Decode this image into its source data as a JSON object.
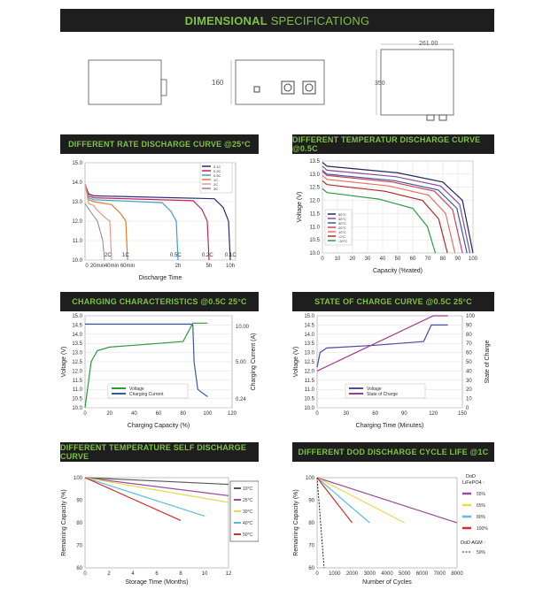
{
  "header": {
    "title_bold": "DIMENSIONAL",
    "title_thin": "SPECIFICATIONG"
  },
  "dimensions": {
    "width_label": "261.00",
    "height_label": "160",
    "depth_label": "350"
  },
  "charts": {
    "rate": {
      "title": "DIFFERENT RATE DISCHARGE CURVE @25°C",
      "ylim": [
        10.0,
        15.0
      ],
      "yticks": [
        "15.0",
        "14.0",
        "13.0",
        "12.0",
        "11.0",
        "10.0"
      ],
      "xticks": [
        "0",
        "20min",
        "40min",
        "60min",
        "2h",
        "5h",
        "10h"
      ],
      "xlabel": "Discharge Time",
      "rate_labels": [
        "2C",
        "1C",
        "0.5C",
        "0.2C",
        "0.1C"
      ],
      "legend": [
        "0.1C",
        "0.2C",
        "0.5C",
        "1C",
        "2C",
        "3C"
      ],
      "colors": [
        "#2a2a7a",
        "#c0285a",
        "#3aa0c8",
        "#e07a30",
        "#e89a8a",
        "#888888"
      ]
    },
    "temp": {
      "title": "DIFFERENT TEMPERATUR DISCHARGE CURVE @0.5C",
      "ylabel": "Voltage (V)",
      "xlabel": "Capacity (%rated)",
      "yticks": [
        "13.5",
        "13.0",
        "12.5",
        "12.0",
        "11.5",
        "11.0",
        "10.5",
        "10.0"
      ],
      "xticks": [
        "0",
        "10",
        "20",
        "30",
        "40",
        "50",
        "60",
        "70",
        "80",
        "90",
        "100"
      ],
      "legend": [
        "60°C",
        "45°C",
        "30°C",
        "25°C",
        "10°C",
        "-0°C",
        "-20°C"
      ],
      "colors": [
        "#1e2a5a",
        "#8a4a9a",
        "#3a5aa0",
        "#d04060",
        "#e87060",
        "#b02a2a",
        "#2a9a4a"
      ]
    },
    "charge": {
      "title": "CHARGING CHARACTERISTICS @0.5C 25°C",
      "ylabel": "Voltage (V)",
      "y2label": "Charging Current (A)",
      "xlabel": "Charging Capacity (%)",
      "yticks": [
        "15.0",
        "14.5",
        "14.0",
        "13.5",
        "13.0",
        "12.5",
        "12.0",
        "11.5",
        "11.0",
        "10.5",
        "10.0"
      ],
      "y2ticks": [
        "10.00",
        "5.00",
        "0.24"
      ],
      "xticks": [
        "0",
        "20",
        "40",
        "60",
        "80",
        "100",
        "120"
      ],
      "legend": [
        "Voltage",
        "Charging Current"
      ],
      "colors": [
        "#2a9a3a",
        "#3a5aa0"
      ]
    },
    "soc": {
      "title": "STATE OF CHARGE CURVE @0.5C 25°C",
      "ylabel": "Voltage (V)",
      "y2label": "State of Charge",
      "xlabel": "Charging Time (Minutes)",
      "yticks": [
        "15.0",
        "14.5",
        "14.0",
        "13.5",
        "13.0",
        "12.5",
        "12.0",
        "11.5",
        "11.0",
        "10.5",
        "10.0"
      ],
      "y2ticks": [
        "100",
        "90",
        "80",
        "70",
        "60",
        "50",
        "40",
        "30",
        "20",
        "10",
        "0"
      ],
      "xticks": [
        "0",
        "30",
        "60",
        "90",
        "120",
        "150"
      ],
      "legend": [
        "Voltage",
        "State of Charge"
      ],
      "colors": [
        "#4a4aa0",
        "#a03a8a"
      ]
    },
    "self": {
      "title": "DIFFERENT TEMPERATURE SELF DISCHARGE CURVE",
      "ylabel": "Remaining Capacity (%)",
      "xlabel": "Storage Time (Months)",
      "yticks": [
        "100",
        "90",
        "80",
        "70",
        "60"
      ],
      "xticks": [
        "0",
        "2",
        "4",
        "6",
        "8",
        "10",
        "12"
      ],
      "legend": [
        "10°C",
        "25°C",
        "30°C",
        "40°C",
        "50°C"
      ],
      "colors": [
        "#555555",
        "#9a4aa0",
        "#e8d84a",
        "#5abde0",
        "#d0302a"
      ]
    },
    "dod": {
      "title": "DIFFERENT DOD DISCHARGE CYCLE LIFE @1C",
      "ylabel": "Remaining Capacity (%)",
      "xlabel": "Number of Cycles",
      "yticks": [
        "100",
        "90",
        "80",
        "70",
        "60"
      ],
      "xticks": [
        "0",
        "1000",
        "2000",
        "3000",
        "4000",
        "5000",
        "6000",
        "7000",
        "8000"
      ],
      "legend_title1": "DoD",
      "legend_title2": "LiFePO4 :",
      "legend": [
        "55%",
        "65%",
        "80%",
        "100%"
      ],
      "legend_agm_title": "DoD AGM :",
      "legend_agm": "50%",
      "colors": [
        "#9a4aa0",
        "#e8d84a",
        "#5abde0",
        "#d0302a"
      ]
    }
  },
  "chart_data": [
    {
      "type": "line",
      "title": "DIFFERENT RATE DISCHARGE CURVE @25°C",
      "xlabel": "Discharge Time",
      "ylim": [
        10.0,
        15.0
      ],
      "series": [
        {
          "name": "0.1C",
          "x_end": "10h",
          "values_start": 13.3,
          "values_end": 10.0
        },
        {
          "name": "0.2C",
          "x_end": "5h",
          "values_start": 13.2,
          "values_end": 10.0
        },
        {
          "name": "0.5C",
          "x_end": "2h",
          "values_start": 13.1,
          "values_end": 10.0
        },
        {
          "name": "1C",
          "x_end": "60min",
          "values_start": 13.0,
          "values_end": 10.0
        },
        {
          "name": "2C",
          "x_end": "40min",
          "values_start": 12.8,
          "values_end": 10.0
        }
      ]
    },
    {
      "type": "line",
      "title": "DIFFERENT TEMPERATUR DISCHARGE CURVE @0.5C",
      "xlabel": "Capacity (%rated)",
      "ylabel": "Voltage (V)",
      "ylim": [
        10.0,
        13.5
      ],
      "xlim": [
        0,
        100
      ],
      "series": [
        {
          "name": "60°C",
          "end_x": 100
        },
        {
          "name": "45°C",
          "end_x": 98
        },
        {
          "name": "30°C",
          "end_x": 96
        },
        {
          "name": "25°C",
          "end_x": 93
        },
        {
          "name": "10°C",
          "end_x": 88
        },
        {
          "name": "-0°C",
          "end_x": 83
        },
        {
          "name": "-20°C",
          "end_x": 75
        }
      ]
    },
    {
      "type": "line",
      "title": "CHARGING CHARACTERISTICS @0.5C 25°C",
      "xlabel": "Charging Capacity (%)",
      "ylabel": "Voltage (V)",
      "y2label": "Charging Current (A)",
      "series": [
        {
          "name": "Voltage",
          "x": [
            0,
            5,
            10,
            20,
            40,
            60,
            80,
            88,
            100
          ],
          "values": [
            10.0,
            12.5,
            13.1,
            13.3,
            13.4,
            13.5,
            13.6,
            14.6,
            14.6
          ]
        },
        {
          "name": "Charging Current",
          "x": [
            0,
            88,
            92,
            100
          ],
          "values": [
            10.0,
            10.0,
            3.0,
            0.24
          ]
        }
      ]
    },
    {
      "type": "line",
      "title": "STATE OF CHARGE CURVE @0.5C 25°C",
      "xlabel": "Charging Time (Minutes)",
      "ylabel": "Voltage (V)",
      "y2label": "State of Charge",
      "series": [
        {
          "name": "Voltage",
          "x": [
            0,
            10,
            60,
            110,
            120,
            130
          ],
          "values": [
            12.2,
            13.2,
            13.4,
            13.6,
            14.5,
            14.5
          ]
        },
        {
          "name": "State of Charge",
          "x": [
            0,
            120,
            135
          ],
          "values": [
            0,
            100,
            100
          ]
        }
      ]
    },
    {
      "type": "line",
      "title": "DIFFERENT TEMPERATURE SELF DISCHARGE CURVE",
      "xlabel": "Storage Time (Months)",
      "ylabel": "Remaining Capacity (%)",
      "ylim": [
        60,
        100
      ],
      "xlim": [
        0,
        12
      ],
      "series": [
        {
          "name": "10°C",
          "x": [
            0,
            12
          ],
          "values": [
            100,
            97
          ]
        },
        {
          "name": "25°C",
          "x": [
            0,
            12
          ],
          "values": [
            100,
            92
          ]
        },
        {
          "name": "30°C",
          "x": [
            0,
            12
          ],
          "values": [
            100,
            89
          ]
        },
        {
          "name": "40°C",
          "x": [
            0,
            10
          ],
          "values": [
            100,
            83
          ]
        },
        {
          "name": "50°C",
          "x": [
            0,
            8
          ],
          "values": [
            100,
            81
          ]
        }
      ]
    },
    {
      "type": "line",
      "title": "DIFFERENT DOD DISCHARGE CYCLE LIFE @1C",
      "xlabel": "Number of Cycles",
      "ylabel": "Remaining Capacity (%)",
      "ylim": [
        60,
        100
      ],
      "xlim": [
        0,
        8000
      ],
      "series": [
        {
          "name": "55%",
          "x": [
            0,
            8000
          ],
          "values": [
            100,
            80
          ]
        },
        {
          "name": "65%",
          "x": [
            0,
            5000
          ],
          "values": [
            100,
            80
          ]
        },
        {
          "name": "80%",
          "x": [
            0,
            3000
          ],
          "values": [
            100,
            80
          ]
        },
        {
          "name": "100%",
          "x": [
            0,
            2000
          ],
          "values": [
            100,
            80
          ]
        },
        {
          "name": "50%",
          "x": [
            0,
            400
          ],
          "values": [
            100,
            60
          ]
        }
      ]
    }
  ]
}
